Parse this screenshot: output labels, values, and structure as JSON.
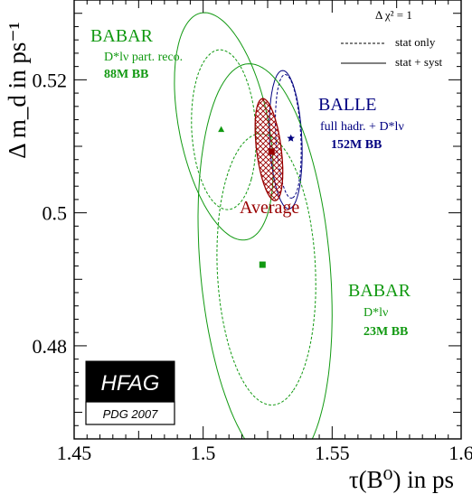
{
  "chart_data": {
    "type": "scatter",
    "xlim": [
      1.45,
      1.6
    ],
    "ylim": [
      0.466,
      0.532
    ],
    "x_ticks": [
      1.45,
      1.5,
      1.55,
      1.6
    ],
    "x_tick_labels": [
      "1.45",
      "1.5",
      "1.55",
      "1.6"
    ],
    "y_ticks": [
      0.48,
      0.5,
      0.52
    ],
    "y_tick_labels": [
      "0.48",
      "0.5",
      "0.52"
    ],
    "x_label": "τ(B⁰) in ps",
    "y_label": "Δ m_d in ps⁻¹",
    "legend": {
      "title": "Δ χ² = 1",
      "entries": [
        {
          "style": "dashed",
          "label": "stat only"
        },
        {
          "style": "solid",
          "label": "stat + syst"
        }
      ]
    },
    "measurements": [
      {
        "name": "BABAR",
        "lines": [
          "D*lν part. reco.",
          "88M BB"
        ],
        "color": "#119911",
        "x": 1.507,
        "y": 0.5125,
        "stat": {
          "cx": 1.508,
          "cy": 0.5125,
          "rx": 0.013,
          "ry": 0.0115,
          "angle": -35
        },
        "syst": {
          "cx": 1.508,
          "cy": 0.513,
          "rx": 0.0215,
          "ry": 0.014,
          "angle": -37
        },
        "marker": "triangle"
      },
      {
        "name": "BALLE",
        "lines": [
          "full hadr. + D*lν",
          "152M BB"
        ],
        "color": "#000080",
        "x": 1.534,
        "y": 0.5112,
        "stat": {
          "cx": 1.533,
          "cy": 0.5115,
          "rx": 0.0094,
          "ry": 0.0048,
          "angle": -80
        },
        "syst": {
          "cx": 1.532,
          "cy": 0.511,
          "rx": 0.0105,
          "ry": 0.0062,
          "angle": -80
        },
        "marker": "star"
      },
      {
        "name": "BABAR",
        "lines": [
          "D*lν",
          "23M BB"
        ],
        "color": "#119911",
        "x": 1.523,
        "y": 0.4922,
        "stat": {
          "cx": 1.5245,
          "cy": 0.4915,
          "rx": 0.021,
          "ry": 0.0185,
          "angle": -60
        },
        "syst": {
          "cx": 1.524,
          "cy": 0.492,
          "rx": 0.032,
          "ry": 0.024,
          "angle": -62
        },
        "marker": "square"
      },
      {
        "name": "Average",
        "lines": [],
        "color": "#990000",
        "x": 1.5265,
        "y": 0.5092,
        "ellipse": {
          "cx": 1.5255,
          "cy": 0.5095,
          "rx": 0.0082,
          "ry": 0.0045,
          "angle": -65
        },
        "marker": "square"
      }
    ]
  },
  "logo": {
    "top": "HFAG",
    "bottom": "PDG 2007"
  }
}
